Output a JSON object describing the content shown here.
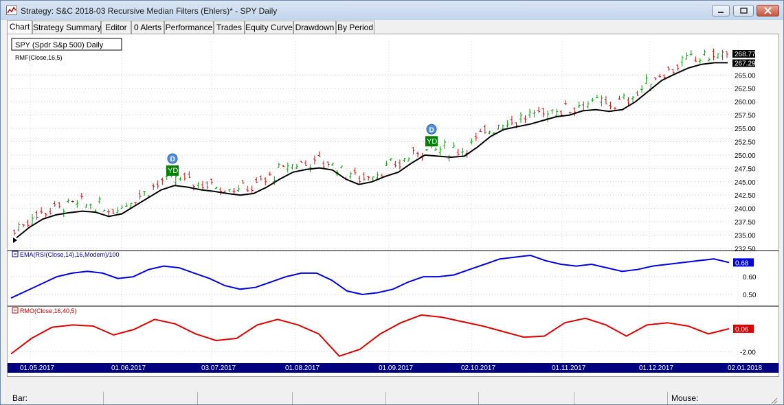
{
  "window": {
    "title": "Strategy: S&C 2018-03 Recursive Median Filters (Ehlers)* - SPY Daily"
  },
  "tabs": [
    "Chart",
    "Strategy Summary",
    "Editor",
    "0 Alerts",
    "Performance",
    "Trades",
    "Equity Curve",
    "Drawdown",
    "By Period"
  ],
  "active_tab": "Chart",
  "chart": {
    "symbol_box": "SPY (Spdr S&p 500) Daily",
    "price_indicator_label": "RMF(Close,16,5)",
    "panel2_label": "EMA(RSI(Close,14),16,Modem)/100",
    "panel3_label": "RMO(Close,16,40,5)",
    "price_axis_ticks": [
      "265.00",
      "262.50",
      "260.00",
      "257.50",
      "255.00",
      "252.50",
      "250.00",
      "247.50",
      "245.00",
      "242.50",
      "240.00",
      "237.50",
      "235.00",
      "232.50"
    ],
    "price_tag_high": "268.77",
    "price_tag_close": "267.29",
    "panel2_ticks": [
      "0.60",
      "0.50"
    ],
    "panel2_tag": "0.68",
    "panel3_ticks": [
      "-2.00"
    ],
    "panel3_tag": "0.06",
    "date_labels": [
      "01.05.2017",
      "01.06.2017",
      "03.07.2017",
      "01.08.2017",
      "01.09.2017",
      "02.10.2017",
      "01.11.2017",
      "01.12.2017",
      "02.01.2018"
    ],
    "markers": [
      {
        "letter": "D",
        "label": "YD"
      },
      {
        "letter": "D",
        "label": "YD"
      }
    ],
    "colors": {
      "up_bar": "#00a000",
      "down_bar": "#d01010",
      "rmf_line": "#000000",
      "ema_line": "#0000e0",
      "rmo_line": "#e00000",
      "date_axis": "#000080"
    }
  },
  "chart_data": [
    {
      "type": "line",
      "title": "SPY (Spdr S&p 500) Daily",
      "series": [
        {
          "name": "RMF(Close,16,5)",
          "values": [
            234.5,
            236.5,
            238.0,
            238.8,
            239.2,
            239.5,
            239.3,
            238.5,
            239.0,
            240.5,
            242.0,
            243.5,
            244.3,
            244.0,
            243.5,
            243.2,
            242.8,
            242.5,
            242.8,
            244.0,
            245.5,
            246.8,
            247.3,
            247.6,
            247.2,
            245.5,
            244.5,
            245.0,
            246.0,
            246.8,
            248.5,
            250.0,
            249.8,
            249.6,
            249.8,
            251.5,
            253.5,
            254.8,
            255.3,
            255.8,
            256.5,
            257.2,
            257.5,
            258.3,
            258.5,
            258.2,
            258.5,
            260.0,
            262.0,
            264.0,
            265.2,
            266.3,
            267.0,
            267.3,
            267.3
          ]
        }
      ],
      "ylim": [
        232.5,
        268.77
      ]
    },
    {
      "type": "line",
      "title": "EMA(RSI(Close,14),16,Modem)/100",
      "series": [
        {
          "name": "EMA(RSI(Close,14),16,Modem)/100",
          "values": [
            0.48,
            0.52,
            0.56,
            0.6,
            0.62,
            0.63,
            0.62,
            0.59,
            0.6,
            0.64,
            0.66,
            0.65,
            0.62,
            0.59,
            0.55,
            0.53,
            0.54,
            0.57,
            0.6,
            0.62,
            0.62,
            0.58,
            0.52,
            0.5,
            0.51,
            0.53,
            0.57,
            0.6,
            0.6,
            0.61,
            0.64,
            0.67,
            0.7,
            0.71,
            0.72,
            0.69,
            0.67,
            0.66,
            0.67,
            0.65,
            0.63,
            0.64,
            0.66,
            0.67,
            0.68,
            0.69,
            0.7,
            0.68
          ]
        }
      ],
      "ylim": [
        0.45,
        0.72
      ]
    },
    {
      "type": "line",
      "title": "RMO(Close,16,40,5)",
      "series": [
        {
          "name": "RMO(Close,16,40,5)",
          "values": [
            -2.2,
            -0.8,
            0.2,
            0.4,
            0.3,
            -0.5,
            0.0,
            0.9,
            0.5,
            -0.4,
            -1.0,
            -0.8,
            0.4,
            0.9,
            0.4,
            -0.4,
            -2.4,
            -1.8,
            -0.4,
            0.6,
            1.3,
            1.1,
            0.7,
            0.3,
            -0.2,
            -0.7,
            -0.6,
            0.6,
            1.0,
            0.4,
            -0.6,
            0.4,
            0.6,
            0.3,
            -0.4,
            0.06
          ]
        }
      ],
      "ylim": [
        -2.6,
        1.6
      ]
    }
  ],
  "statusbar": {
    "bar_label": "Bar:",
    "mouse_label": "Mouse:"
  }
}
